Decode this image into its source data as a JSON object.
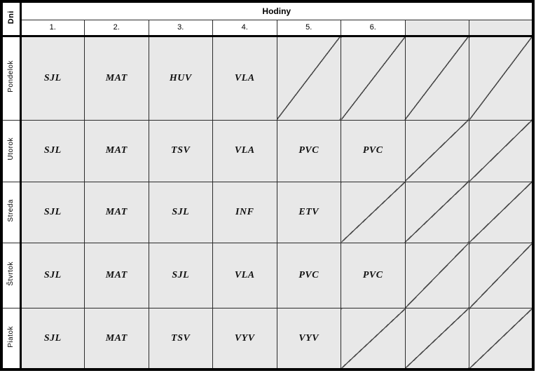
{
  "timetable": {
    "corner_label": "Dni",
    "top_header": "Hodiny",
    "period_headers": [
      "1.",
      "2.",
      "3.",
      "4.",
      "5.",
      "6.",
      "",
      ""
    ],
    "rows": [
      {
        "day": "Pondelok",
        "cells": [
          "SJL",
          "MAT",
          "HUV",
          "VLA",
          "",
          "",
          "",
          ""
        ]
      },
      {
        "day": "Utorok",
        "cells": [
          "SJL",
          "MAT",
          "TSV",
          "VLA",
          "PVC",
          "PVC",
          "",
          ""
        ]
      },
      {
        "day": "Streda",
        "cells": [
          "SJL",
          "MAT",
          "SJL",
          "INF",
          "ETV",
          "",
          "",
          ""
        ]
      },
      {
        "day": "Štvrtok",
        "cells": [
          "SJL",
          "MAT",
          "SJL",
          "VLA",
          "PVC",
          "PVC",
          "",
          ""
        ]
      },
      {
        "day": "Piatok",
        "cells": [
          "SJL",
          "MAT",
          "TSV",
          "VYV",
          "VYV",
          "",
          "",
          ""
        ]
      }
    ],
    "colors": {
      "cell_background": "#e8e8e8",
      "header_background": "#ffffff",
      "grid_line": "#2b2b2b",
      "outer_border": "#000000",
      "diagonal_line": "#4a4a4a",
      "subject_text": "#111111"
    }
  }
}
